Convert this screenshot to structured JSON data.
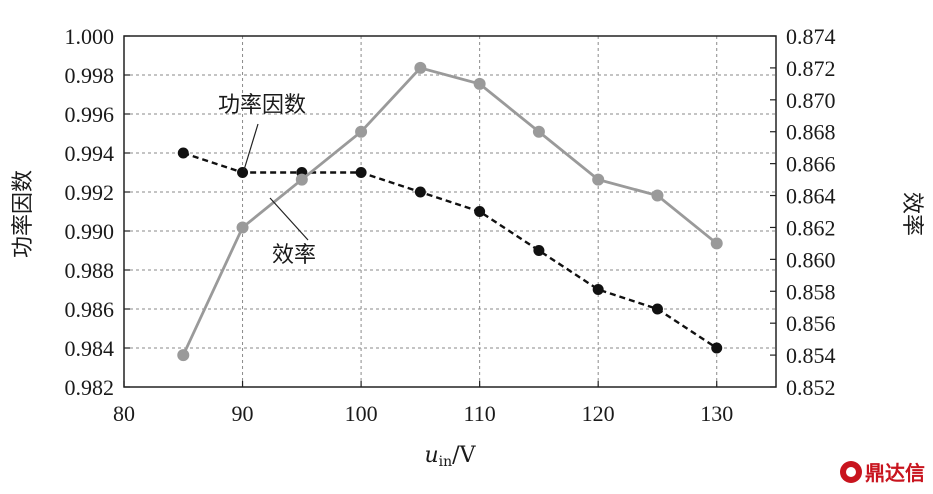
{
  "chart_data": {
    "type": "line",
    "x": [
      85,
      90,
      95,
      100,
      105,
      110,
      115,
      120,
      125,
      130
    ],
    "xlim": [
      80,
      135
    ],
    "xticks": [
      "80",
      "90",
      "100",
      "110",
      "120",
      "130"
    ],
    "xlabel_var": "u",
    "xlabel_sub": "in",
    "xlabel_unit": "/V",
    "ylabel_left": "功率因数",
    "ylabel_right": "效率",
    "ylim_left": [
      0.982,
      1.0
    ],
    "ylim_right": [
      0.852,
      0.874
    ],
    "yticks_left": [
      "0.982",
      "0.984",
      "0.986",
      "0.988",
      "0.990",
      "0.992",
      "0.994",
      "0.996",
      "0.998",
      "1.000"
    ],
    "yticks_right": [
      "0.852",
      "0.854",
      "0.856",
      "0.858",
      "0.860",
      "0.862",
      "0.864",
      "0.866",
      "0.868",
      "0.870",
      "0.872",
      "0.874"
    ],
    "grid": true,
    "series": [
      {
        "name": "功率因数",
        "axis": "left",
        "style": "dashed",
        "color": "#111111",
        "values": [
          0.994,
          0.993,
          0.993,
          0.993,
          0.992,
          0.991,
          0.989,
          0.987,
          0.986,
          0.984
        ]
      },
      {
        "name": "效率",
        "axis": "right",
        "style": "solid",
        "color": "#9a9a9a",
        "values": [
          0.854,
          0.862,
          0.865,
          0.868,
          0.872,
          0.871,
          0.868,
          0.865,
          0.864,
          0.861
        ]
      }
    ]
  },
  "watermark": {
    "text": "鼎达信",
    "color": "#c8141e"
  }
}
